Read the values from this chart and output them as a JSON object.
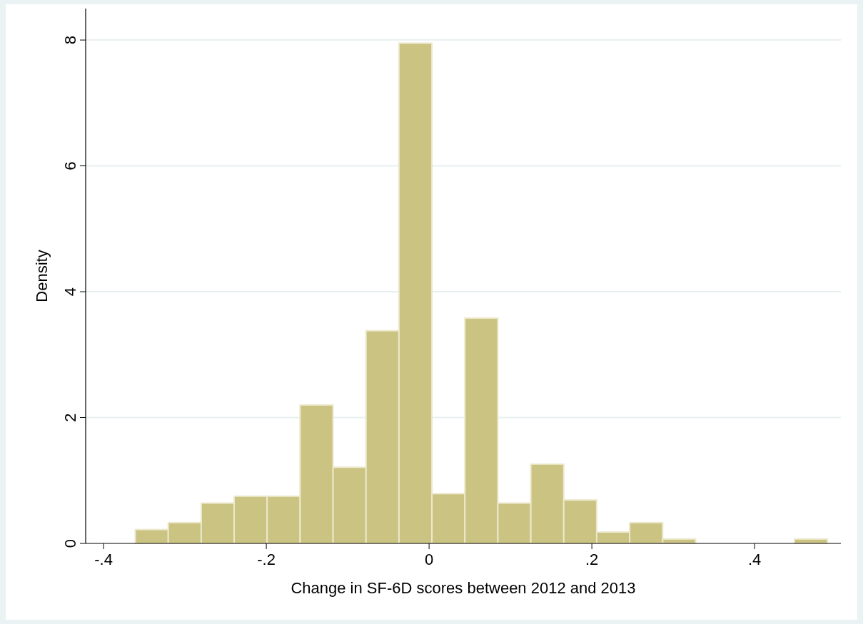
{
  "chart_data": {
    "type": "histogram",
    "xlabel": "Change in SF-6D scores between 2012 and 2013",
    "ylabel": "Density",
    "bins": [
      -0.361,
      -0.3205,
      -0.28,
      -0.2395,
      -0.199,
      -0.1585,
      -0.118,
      -0.0775,
      -0.037,
      0.0035,
      0.044,
      0.0845,
      0.125,
      0.1655,
      0.206,
      0.2465,
      0.287,
      0.3275,
      0.368,
      0.4085,
      0.449,
      0.4895
    ],
    "values": [
      0.22,
      0.33,
      0.64,
      0.75,
      0.75,
      2.2,
      1.21,
      3.38,
      7.95,
      0.79,
      3.58,
      0.64,
      1.26,
      0.69,
      0.18,
      0.33,
      0.07,
      0,
      0,
      0,
      0.07
    ],
    "color": "#cbc382",
    "xlim": [
      -0.422,
      0.506
    ],
    "xticks": [
      {
        "value": -0.4,
        "label": "-.4"
      },
      {
        "value": -0.2,
        "label": "-.2"
      },
      0,
      {
        "value": 0.2,
        "label": ".2"
      },
      {
        "value": 0.4,
        "label": ".4"
      }
    ],
    "ylim": [
      0,
      8.5
    ],
    "yticks": [
      0,
      2,
      4,
      6,
      8
    ],
    "grid": "y"
  }
}
